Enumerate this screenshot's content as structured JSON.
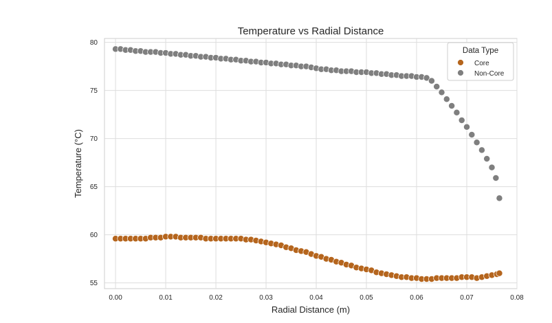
{
  "chart_data": {
    "type": "scatter",
    "title": "Temperature vs Radial Distance",
    "xlabel": "Radial Distance (m)",
    "ylabel": "Temperature (°C)",
    "xlim": [
      -0.0022,
      0.08
    ],
    "ylim": [
      54.4,
      80.4
    ],
    "xticks": [
      0.0,
      0.01,
      0.02,
      0.03,
      0.04,
      0.05,
      0.06,
      0.07,
      0.08
    ],
    "xtick_labels": [
      "0.00",
      "0.01",
      "0.02",
      "0.03",
      "0.04",
      "0.05",
      "0.06",
      "0.07",
      "0.08"
    ],
    "yticks": [
      55,
      60,
      65,
      70,
      75,
      80
    ],
    "ytick_labels": [
      "55",
      "60",
      "65",
      "70",
      "75",
      "80"
    ],
    "grid": true,
    "legend": {
      "title": "Data Type",
      "placement": "top-right"
    },
    "series": [
      {
        "name": "Core",
        "color": "#b5651d",
        "x": [
          0.0,
          0.001,
          0.002,
          0.003,
          0.004,
          0.005,
          0.006,
          0.007,
          0.008,
          0.009,
          0.01,
          0.011,
          0.012,
          0.013,
          0.014,
          0.015,
          0.016,
          0.017,
          0.018,
          0.019,
          0.02,
          0.021,
          0.022,
          0.023,
          0.024,
          0.025,
          0.026,
          0.027,
          0.028,
          0.029,
          0.03,
          0.031,
          0.032,
          0.033,
          0.034,
          0.035,
          0.036,
          0.037,
          0.038,
          0.039,
          0.04,
          0.041,
          0.042,
          0.043,
          0.044,
          0.045,
          0.046,
          0.047,
          0.048,
          0.049,
          0.05,
          0.051,
          0.052,
          0.053,
          0.054,
          0.055,
          0.056,
          0.057,
          0.058,
          0.059,
          0.06,
          0.061,
          0.062,
          0.063,
          0.064,
          0.065,
          0.066,
          0.067,
          0.068,
          0.069,
          0.07,
          0.071,
          0.072,
          0.073,
          0.074,
          0.075,
          0.076,
          0.0765
        ],
        "y": [
          59.6,
          59.6,
          59.6,
          59.6,
          59.6,
          59.6,
          59.6,
          59.7,
          59.7,
          59.7,
          59.8,
          59.8,
          59.8,
          59.7,
          59.7,
          59.7,
          59.7,
          59.7,
          59.6,
          59.6,
          59.6,
          59.6,
          59.6,
          59.6,
          59.6,
          59.6,
          59.5,
          59.5,
          59.4,
          59.3,
          59.2,
          59.1,
          59.0,
          58.9,
          58.7,
          58.6,
          58.4,
          58.3,
          58.2,
          58.0,
          57.8,
          57.7,
          57.5,
          57.4,
          57.2,
          57.1,
          56.9,
          56.8,
          56.6,
          56.5,
          56.4,
          56.3,
          56.1,
          56.0,
          55.9,
          55.8,
          55.7,
          55.6,
          55.6,
          55.5,
          55.5,
          55.4,
          55.4,
          55.4,
          55.5,
          55.5,
          55.5,
          55.5,
          55.5,
          55.6,
          55.6,
          55.6,
          55.5,
          55.6,
          55.7,
          55.8,
          55.9,
          56.0
        ]
      },
      {
        "name": "Non-Core",
        "color": "#7f7f7f",
        "x": [
          0.0,
          0.001,
          0.002,
          0.003,
          0.004,
          0.005,
          0.006,
          0.007,
          0.008,
          0.009,
          0.01,
          0.011,
          0.012,
          0.013,
          0.014,
          0.015,
          0.016,
          0.017,
          0.018,
          0.019,
          0.02,
          0.021,
          0.022,
          0.023,
          0.024,
          0.025,
          0.026,
          0.027,
          0.028,
          0.029,
          0.03,
          0.031,
          0.032,
          0.033,
          0.034,
          0.035,
          0.036,
          0.037,
          0.038,
          0.039,
          0.04,
          0.041,
          0.042,
          0.043,
          0.044,
          0.045,
          0.046,
          0.047,
          0.048,
          0.049,
          0.05,
          0.051,
          0.052,
          0.053,
          0.054,
          0.055,
          0.056,
          0.057,
          0.058,
          0.059,
          0.06,
          0.061,
          0.062,
          0.063,
          0.064,
          0.065,
          0.066,
          0.067,
          0.068,
          0.069,
          0.07,
          0.071,
          0.072,
          0.073,
          0.074,
          0.075,
          0.0758,
          0.0765
        ],
        "y": [
          79.3,
          79.3,
          79.2,
          79.2,
          79.1,
          79.1,
          79.0,
          79.0,
          79.0,
          78.9,
          78.9,
          78.8,
          78.8,
          78.7,
          78.7,
          78.6,
          78.6,
          78.5,
          78.5,
          78.4,
          78.4,
          78.3,
          78.3,
          78.2,
          78.2,
          78.1,
          78.1,
          78.0,
          78.0,
          77.9,
          77.9,
          77.8,
          77.8,
          77.7,
          77.7,
          77.6,
          77.6,
          77.5,
          77.5,
          77.4,
          77.3,
          77.2,
          77.2,
          77.1,
          77.1,
          77.0,
          77.0,
          77.0,
          76.9,
          76.9,
          76.9,
          76.8,
          76.8,
          76.7,
          76.7,
          76.6,
          76.6,
          76.5,
          76.5,
          76.5,
          76.4,
          76.4,
          76.3,
          76.0,
          75.4,
          74.8,
          74.1,
          73.4,
          72.7,
          71.9,
          71.2,
          70.4,
          69.6,
          68.8,
          67.9,
          67.0,
          65.9,
          63.8
        ]
      }
    ]
  }
}
